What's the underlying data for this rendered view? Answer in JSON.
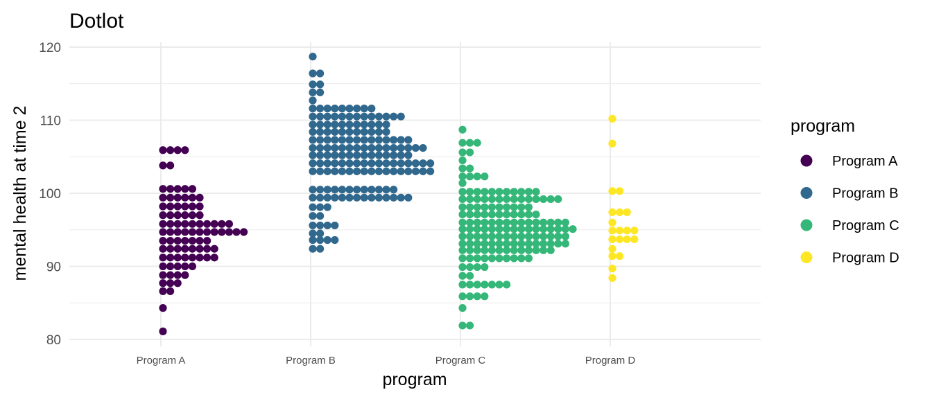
{
  "chart_data": {
    "type": "scatter",
    "subtype": "dotplot",
    "title": "Dotlot",
    "xlabel": "program",
    "ylabel": "mental health at time 2",
    "ylim": [
      79,
      121
    ],
    "yticks": [
      80,
      90,
      100,
      110,
      120
    ],
    "grid": true,
    "legend": {
      "title": "program",
      "position": "right"
    },
    "categories": [
      "Program A",
      "Program B",
      "Program C",
      "Program D"
    ],
    "colors": {
      "Program A": "#440154",
      "Program B": "#31688e",
      "Program C": "#35b779",
      "Program D": "#fde725"
    },
    "series": [
      {
        "name": "Program A",
        "bins": [
          {
            "y": 81.1,
            "count": 1
          },
          {
            "y": 84.3,
            "count": 1
          },
          {
            "y": 86.6,
            "count": 2
          },
          {
            "y": 87.7,
            "count": 3
          },
          {
            "y": 88.8,
            "count": 4
          },
          {
            "y": 90.0,
            "count": 5
          },
          {
            "y": 91.2,
            "count": 8
          },
          {
            "y": 92.4,
            "count": 8
          },
          {
            "y": 93.5,
            "count": 7
          },
          {
            "y": 94.7,
            "count": 12
          },
          {
            "y": 95.8,
            "count": 10
          },
          {
            "y": 97.0,
            "count": 6
          },
          {
            "y": 98.2,
            "count": 6
          },
          {
            "y": 99.4,
            "count": 6
          },
          {
            "y": 100.6,
            "count": 5
          },
          {
            "y": 103.8,
            "count": 2
          },
          {
            "y": 105.9,
            "count": 4
          }
        ]
      },
      {
        "name": "Program B",
        "bins": [
          {
            "y": 92.4,
            "count": 2
          },
          {
            "y": 93.6,
            "count": 4
          },
          {
            "y": 94.5,
            "count": 2
          },
          {
            "y": 95.6,
            "count": 4
          },
          {
            "y": 96.9,
            "count": 2
          },
          {
            "y": 98.1,
            "count": 3
          },
          {
            "y": 99.4,
            "count": 14
          },
          {
            "y": 100.5,
            "count": 12
          },
          {
            "y": 103.0,
            "count": 17
          },
          {
            "y": 104.1,
            "count": 17
          },
          {
            "y": 105.2,
            "count": 14
          },
          {
            "y": 106.2,
            "count": 16
          },
          {
            "y": 107.3,
            "count": 14
          },
          {
            "y": 108.4,
            "count": 11
          },
          {
            "y": 109.4,
            "count": 11
          },
          {
            "y": 110.5,
            "count": 13
          },
          {
            "y": 111.6,
            "count": 9
          },
          {
            "y": 112.7,
            "count": 1
          },
          {
            "y": 113.8,
            "count": 2
          },
          {
            "y": 114.9,
            "count": 2
          },
          {
            "y": 116.4,
            "count": 2
          },
          {
            "y": 118.7,
            "count": 1
          }
        ]
      },
      {
        "name": "Program C",
        "bins": [
          {
            "y": 81.9,
            "count": 2
          },
          {
            "y": 84.3,
            "count": 1
          },
          {
            "y": 85.9,
            "count": 4
          },
          {
            "y": 87.5,
            "count": 7
          },
          {
            "y": 88.7,
            "count": 2
          },
          {
            "y": 89.9,
            "count": 4
          },
          {
            "y": 91.1,
            "count": 10
          },
          {
            "y": 92.2,
            "count": 13
          },
          {
            "y": 93.1,
            "count": 15
          },
          {
            "y": 94.1,
            "count": 15
          },
          {
            "y": 95.1,
            "count": 16
          },
          {
            "y": 96.0,
            "count": 15
          },
          {
            "y": 97.1,
            "count": 11
          },
          {
            "y": 98.1,
            "count": 10
          },
          {
            "y": 99.2,
            "count": 14
          },
          {
            "y": 100.2,
            "count": 11
          },
          {
            "y": 101.4,
            "count": 1
          },
          {
            "y": 102.3,
            "count": 4
          },
          {
            "y": 103.4,
            "count": 2
          },
          {
            "y": 104.5,
            "count": 1
          },
          {
            "y": 105.6,
            "count": 2
          },
          {
            "y": 106.9,
            "count": 3
          },
          {
            "y": 108.7,
            "count": 1
          }
        ]
      },
      {
        "name": "Program D",
        "bins": [
          {
            "y": 88.4,
            "count": 1
          },
          {
            "y": 89.7,
            "count": 1
          },
          {
            "y": 91.4,
            "count": 2
          },
          {
            "y": 92.4,
            "count": 1
          },
          {
            "y": 93.7,
            "count": 4
          },
          {
            "y": 94.9,
            "count": 4
          },
          {
            "y": 96.0,
            "count": 1
          },
          {
            "y": 97.4,
            "count": 3
          },
          {
            "y": 100.3,
            "count": 2
          },
          {
            "y": 106.8,
            "count": 1
          },
          {
            "y": 110.2,
            "count": 1
          }
        ]
      }
    ]
  }
}
